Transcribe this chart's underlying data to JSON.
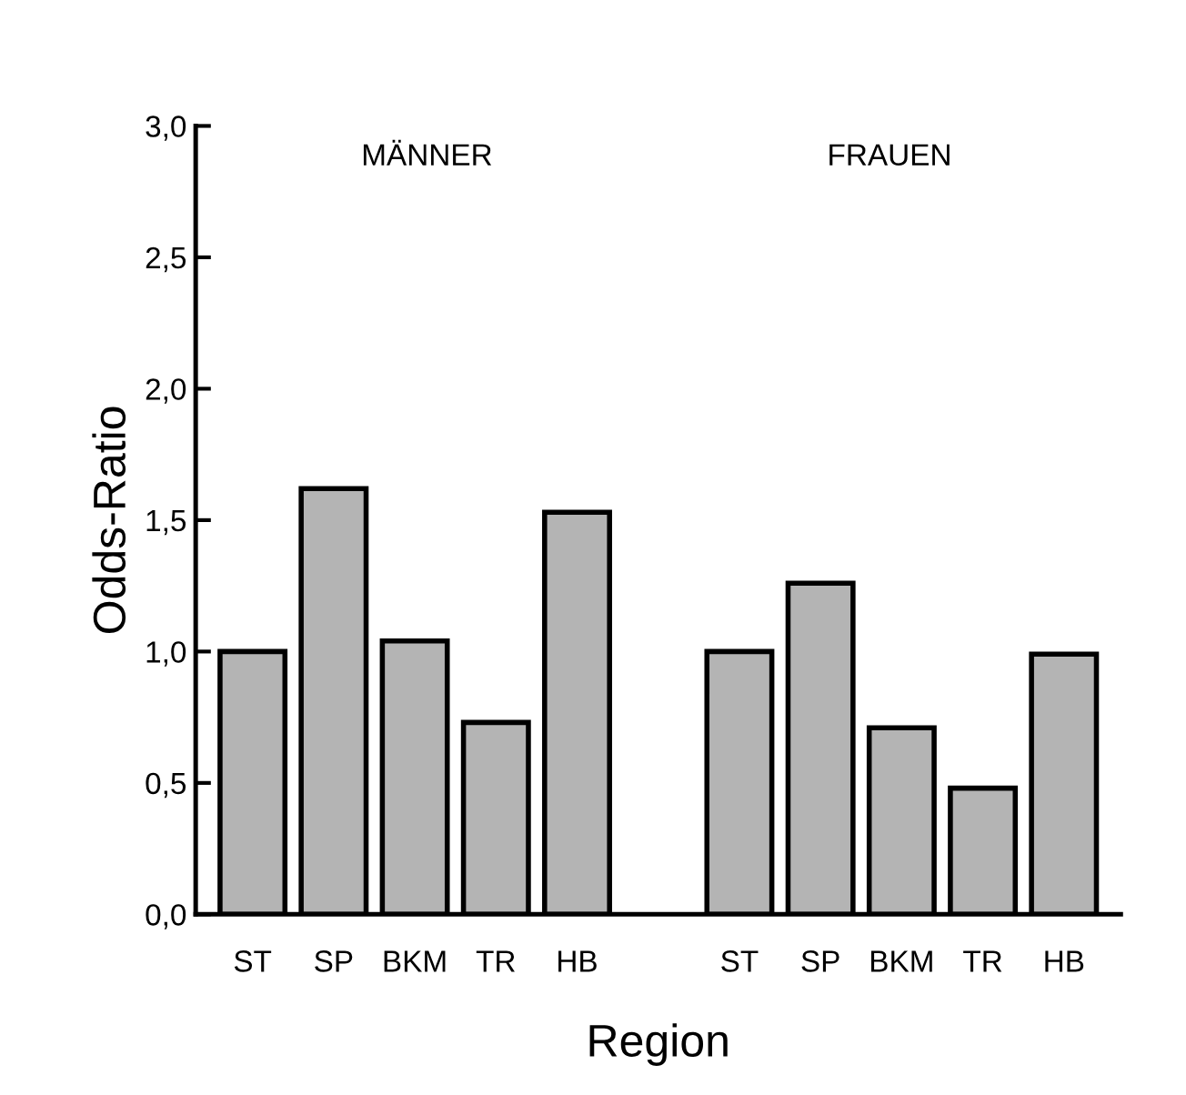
{
  "chart_data": {
    "type": "bar",
    "xlabel": "Region",
    "ylabel": "Odds-Ratio",
    "categories": [
      "ST",
      "SP",
      "BKM",
      "TR",
      "HB",
      null,
      "ST",
      "SP",
      "BKM",
      "TR",
      "HB"
    ],
    "values": [
      1.0,
      1.62,
      1.04,
      0.73,
      1.53,
      null,
      1.0,
      1.26,
      0.71,
      0.48,
      0.99
    ],
    "color": "#b4b4b4",
    "ylim": [
      0,
      3.0
    ],
    "yticks": [
      {
        "value": 0,
        "label": "0,0"
      },
      {
        "value": 0.5,
        "label": "0,5"
      },
      {
        "value": 1.0,
        "label": "1,0"
      },
      {
        "value": 1.5,
        "label": "1,5"
      },
      {
        "value": 2.0,
        "label": "2,0"
      },
      {
        "value": 2.5,
        "label": "2,5"
      },
      {
        "value": 3.0,
        "label": "3,0"
      }
    ],
    "annotations": [
      "MÄNNER",
      "FRAUEN"
    ],
    "grid": false
  }
}
